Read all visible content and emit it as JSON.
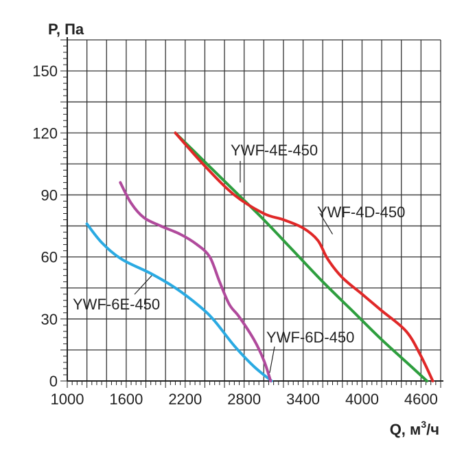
{
  "chart_data": {
    "type": "line",
    "title": "",
    "xlabel": "Q, м",
    "xlabel_sup": "3",
    "xlabel_suffix": "/ч",
    "ylabel": "P, Па",
    "xlim": [
      1000,
      4800
    ],
    "ylim": [
      0,
      165
    ],
    "grid": true,
    "x_ticks": [
      1000,
      1600,
      2200,
      2800,
      3400,
      4000,
      4600
    ],
    "x_tick_labels": [
      "1000",
      "1600",
      "2200",
      "2800",
      "3400",
      "4000",
      "4600"
    ],
    "y_ticks": [
      0,
      30,
      60,
      90,
      120,
      150
    ],
    "y_tick_labels": [
      "0",
      "30",
      "60",
      "90",
      "120",
      "150"
    ],
    "series": [
      {
        "name": "YWF-4E-450",
        "color": "#2e9e3e",
        "x": [
          2100,
          2400,
          2700,
          3000,
          3300,
          3600,
          3900,
          4200,
          4500,
          4660
        ],
        "y": [
          120,
          106,
          92,
          78,
          63,
          48,
          34,
          20,
          7,
          0
        ]
      },
      {
        "name": "YWF-4D-450",
        "color": "#e02828",
        "x": [
          2100,
          2400,
          2700,
          3000,
          3200,
          3400,
          3550,
          3650,
          3800,
          4000,
          4200,
          4450,
          4600,
          4720
        ],
        "y": [
          120,
          104,
          90,
          81,
          78,
          74,
          68,
          59,
          50,
          42,
          34,
          24,
          12,
          0
        ]
      },
      {
        "name": "YWF-6E-450",
        "color": "#2aaae2",
        "x": [
          1200,
          1350,
          1550,
          1850,
          2100,
          2350,
          2500,
          2700,
          2900,
          3080
        ],
        "y": [
          76,
          67,
          59,
          52,
          45,
          36,
          29,
          17,
          7,
          0
        ]
      },
      {
        "name": "YWF-6D-450",
        "color": "#b04a9c",
        "x": [
          1540,
          1650,
          1780,
          1950,
          2150,
          2320,
          2450,
          2550,
          2650,
          2750,
          2900,
          3000,
          3070
        ],
        "y": [
          96,
          86,
          79,
          75,
          71,
          66,
          60,
          48,
          37,
          31,
          20,
          10,
          0
        ]
      }
    ],
    "labels": [
      {
        "text": "YWF-4E-450",
        "series": "YWF-4E-450",
        "anchor_x": 2760,
        "anchor_y": 96
      },
      {
        "text": "YWF-4D-450",
        "series": "YWF-4D-450",
        "anchor_x": 3700,
        "anchor_y": 71
      },
      {
        "text": "YWF-6E-450",
        "series": "YWF-6E-450",
        "anchor_x": 1860,
        "anchor_y": 51
      },
      {
        "text": "YWF-6D-450",
        "series": "YWF-6D-450",
        "anchor_x": 3060,
        "anchor_y": 4
      }
    ]
  }
}
